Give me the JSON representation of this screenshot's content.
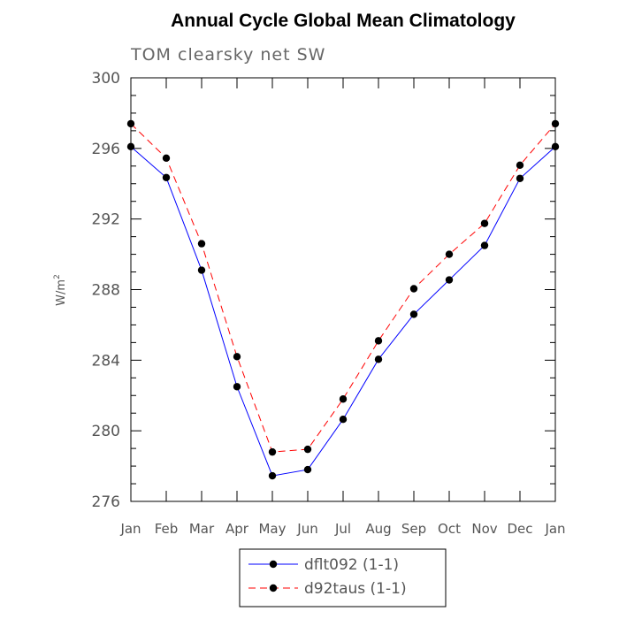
{
  "chart_data": {
    "type": "line",
    "title": "Annual Cycle Global Mean Climatology",
    "subtitle": "TOM clearsky net SW",
    "ylabel": "W/m",
    "ylabel_sup": "2",
    "xlabel": "",
    "categories": [
      "Jan",
      "Feb",
      "Mar",
      "Apr",
      "May",
      "Jun",
      "Jul",
      "Aug",
      "Sep",
      "Oct",
      "Nov",
      "Dec",
      "Jan"
    ],
    "ylim": [
      276,
      300
    ],
    "yticks": [
      "276",
      "280",
      "284",
      "288",
      "292",
      "296",
      "300"
    ],
    "series": [
      {
        "name": "dflt092 (1-1)",
        "color": "#0000ff",
        "style": "solid",
        "values": [
          296.1,
          294.35,
          289.1,
          282.5,
          277.45,
          277.8,
          280.65,
          284.05,
          286.6,
          288.55,
          290.5,
          294.3,
          296.1
        ]
      },
      {
        "name": "d92taus (1-1)",
        "color": "#ff0000",
        "style": "dashed",
        "values": [
          297.4,
          295.45,
          290.6,
          284.2,
          278.8,
          278.95,
          281.8,
          285.1,
          288.05,
          290.0,
          291.75,
          295.05,
          297.4
        ]
      }
    ],
    "grid": false,
    "legend_position": "bottom"
  }
}
